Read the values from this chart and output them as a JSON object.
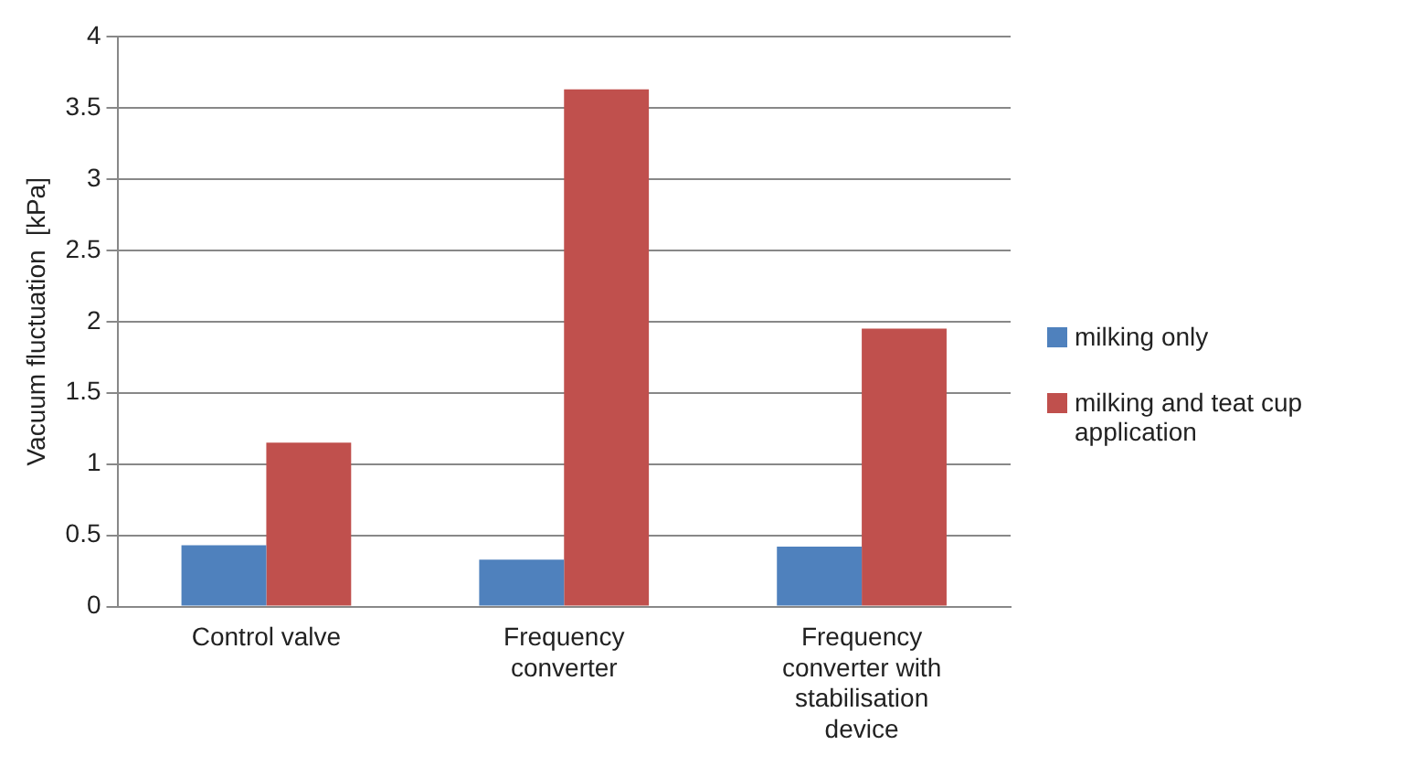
{
  "chart_data": {
    "type": "bar",
    "ylabel": "Vacuum fluctuation  [kPa]",
    "categories": [
      "Control valve",
      "Frequency converter",
      "Frequency converter with stabilisation device"
    ],
    "series": [
      {
        "name": "milking only",
        "color": "#4f81bd",
        "values": [
          0.43,
          0.33,
          0.42
        ]
      },
      {
        "name": "milking and teat cup application",
        "color": "#c0504d",
        "values": [
          1.15,
          3.63,
          1.95
        ]
      }
    ],
    "ylim": [
      0,
      4
    ],
    "yticks": [
      0,
      0.5,
      1,
      1.5,
      2,
      2.5,
      3,
      3.5,
      4
    ],
    "grid": "y",
    "legend": "right"
  }
}
